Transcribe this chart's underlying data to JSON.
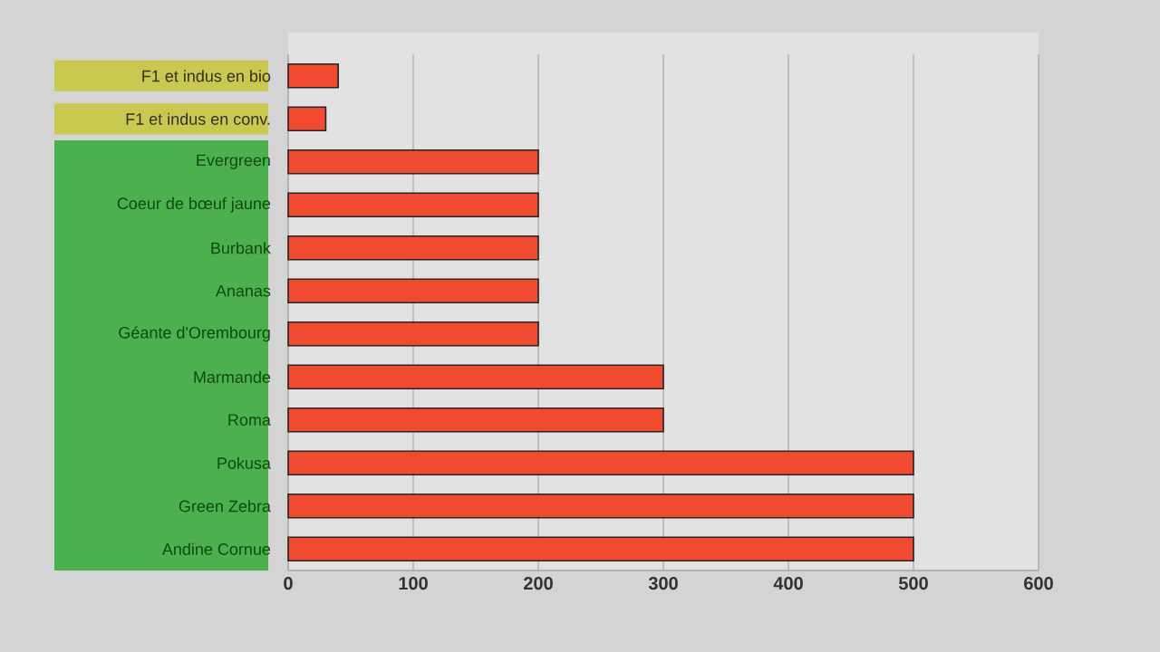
{
  "chart_data": {
    "type": "bar",
    "orientation": "horizontal",
    "categories": [
      "F1 et indus en bio",
      "F1 et indus en conv.",
      "Evergreen",
      "Coeur de bœuf jaune",
      "Burbank",
      "Ananas",
      "Géante d'Orembourg",
      "Marmande",
      "Roma",
      "Pokusa",
      "Green Zebra",
      "Andine Cornue"
    ],
    "values": [
      40,
      30,
      200,
      200,
      200,
      200,
      200,
      300,
      300,
      500,
      500,
      500
    ],
    "color": "#f04a30",
    "xlim": [
      0,
      600
    ],
    "xticks": [
      0,
      100,
      200,
      300,
      400,
      500,
      600
    ],
    "grid": "x"
  }
}
